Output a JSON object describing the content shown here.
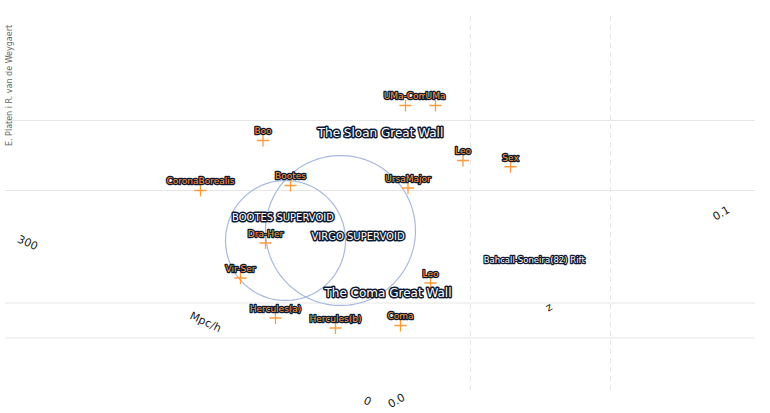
{
  "chart_data": {
    "type": "cone",
    "credit": "E. Platen i R. van de Weygaert",
    "distance_axis": {
      "label": "Mpc/h",
      "lim": [
        0,
        300
      ],
      "ticks": [
        0,
        300
      ]
    },
    "redshift_axis": {
      "label": "z",
      "lim": [
        0,
        0.1
      ],
      "ticks": [
        {
          "value": 0,
          "label": "0.0"
        },
        {
          "value": 0.1,
          "label": "0.1"
        }
      ]
    },
    "clusters": {
      "names": [
        "UMa-Com",
        "UMa",
        "Boo",
        "Leo",
        "Sex",
        "CoronaBorealis",
        "Bootes",
        "UrsaMajor",
        "Dra-Her",
        "Vir-Ser",
        "Leo",
        "Hercules(a)",
        "Hercules(b)",
        "Coma"
      ],
      "x": [
        20,
        44,
        -94,
        66,
        104,
        -144,
        -72,
        22,
        -92,
        -112,
        40,
        -84,
        -36,
        16
      ],
      "y": [
        228,
        228,
        200,
        184,
        179,
        160,
        164,
        162,
        118,
        90,
        86,
        58,
        50,
        52
      ],
      "color": "#ff9a3c",
      "marker": "plus"
    },
    "walls": [
      {
        "name": "The Sloan Great Wall",
        "y": [
          160,
          216
        ],
        "label_xy": [
          0,
          206
        ]
      },
      {
        "name": "The Coma Great Wall",
        "y": [
          42,
          70
        ],
        "label_xy": [
          6,
          78
        ]
      }
    ],
    "supervoids": [
      {
        "name": "BOOTES SUPERVOID",
        "center": [
          -76,
          120
        ],
        "radius": 48,
        "label_xy": [
          -78,
          138
        ]
      },
      {
        "name": "VIRGO SUPERVOID",
        "center": [
          -32,
          128
        ],
        "radius": 60,
        "label_xy": [
          -18,
          123
        ]
      }
    ],
    "rift": {
      "name": "Bahcall-Soneira(82) Rift",
      "x": [
        72,
        184
      ],
      "label_xy": [
        123,
        104
      ],
      "line_style": "dashed"
    }
  }
}
